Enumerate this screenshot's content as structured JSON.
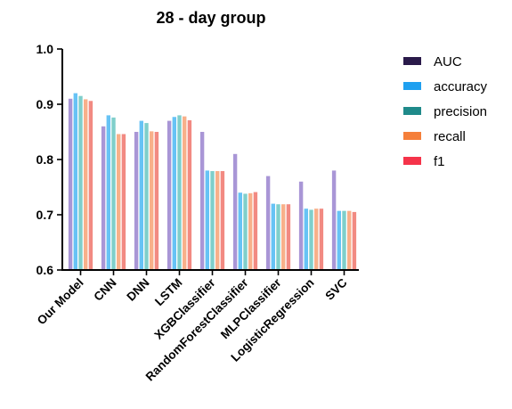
{
  "chart_data": {
    "type": "bar",
    "title": "28 - day group",
    "xlabel": "",
    "ylabel": "",
    "ylim": [
      0.6,
      1.0
    ],
    "yticks": [
      "0.6",
      "0.7",
      "0.8",
      "0.9",
      "1.0"
    ],
    "grid": false,
    "legend_position": "right",
    "categories": [
      "Our Model",
      "CNN",
      "DNN",
      "LSTM",
      "XGBClassifier",
      "RandomForestClassifier",
      "MLPClassifier",
      "LogisticRegression",
      "SVC"
    ],
    "series": [
      {
        "name": "AUC",
        "legend_color": "#2a1a4a",
        "bar_color": "#a996d6",
        "values": [
          0.91,
          0.86,
          0.85,
          0.87,
          0.85,
          0.81,
          0.77,
          0.76,
          0.78
        ]
      },
      {
        "name": "accuracy",
        "legend_color": "#1fa0f0",
        "bar_color": "#67c3f5",
        "values": [
          0.92,
          0.88,
          0.87,
          0.877,
          0.78,
          0.74,
          0.72,
          0.711,
          0.707
        ]
      },
      {
        "name": "precision",
        "legend_color": "#1f8a8a",
        "bar_color": "#7fcfcb",
        "values": [
          0.915,
          0.876,
          0.866,
          0.88,
          0.779,
          0.738,
          0.719,
          0.709,
          0.707
        ]
      },
      {
        "name": "recall",
        "legend_color": "#f57f3a",
        "bar_color": "#f8b08a",
        "values": [
          0.909,
          0.846,
          0.851,
          0.878,
          0.779,
          0.739,
          0.719,
          0.711,
          0.707
        ]
      },
      {
        "name": "f1",
        "legend_color": "#f5334a",
        "bar_color": "#f28a82",
        "values": [
          0.906,
          0.846,
          0.85,
          0.871,
          0.779,
          0.741,
          0.719,
          0.711,
          0.705
        ]
      }
    ]
  }
}
